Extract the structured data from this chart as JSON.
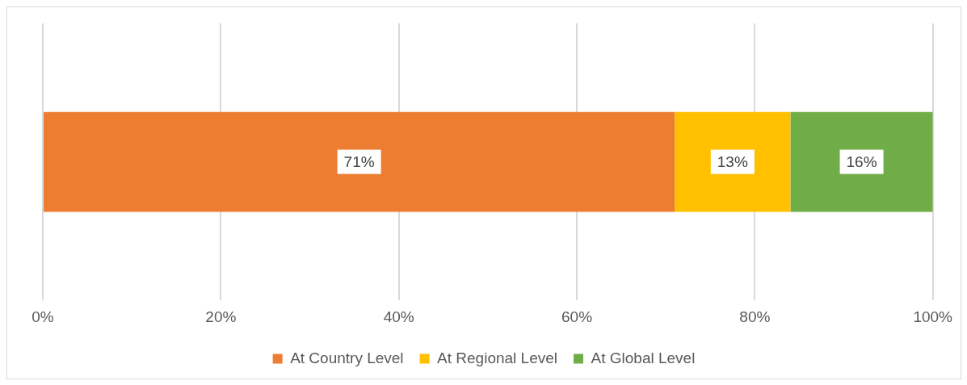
{
  "chart_data": {
    "type": "bar",
    "orientation": "horizontal",
    "stacked": true,
    "categories": [
      null
    ],
    "series": [
      {
        "name": "At Country Level",
        "color": "#ed7d31",
        "values": [
          71
        ],
        "value_labels": [
          "71%"
        ]
      },
      {
        "name": "At Regional Level",
        "color": "#ffc000",
        "values": [
          13
        ],
        "value_labels": [
          "13%"
        ]
      },
      {
        "name": "At Global Level",
        "color": "#70ad47",
        "values": [
          16
        ],
        "value_labels": [
          "16%"
        ]
      }
    ],
    "xlim": [
      0,
      100
    ],
    "xticks": [
      {
        "value": 0,
        "label": "0%"
      },
      {
        "value": 20,
        "label": "20%"
      },
      {
        "value": 40,
        "label": "40%"
      },
      {
        "value": 60,
        "label": "60%"
      },
      {
        "value": 80,
        "label": "80%"
      },
      {
        "value": 100,
        "label": "100%"
      }
    ],
    "grid": "x",
    "legend": "bottom"
  }
}
